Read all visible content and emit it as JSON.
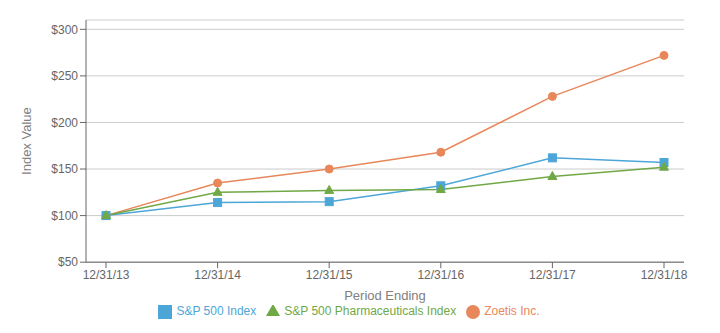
{
  "chart_data": {
    "type": "line",
    "xlabel": "Period Ending",
    "ylabel": "Index Value",
    "categories": [
      "12/31/13",
      "12/31/14",
      "12/31/15",
      "12/31/16",
      "12/31/17",
      "12/31/18"
    ],
    "series": [
      {
        "name": "Zoetis Inc.",
        "color": "#E8875A",
        "marker": "circle",
        "values": [
          100,
          135,
          150,
          168,
          228,
          272
        ]
      },
      {
        "name": "S&P 500 Index",
        "color": "#4DA6D8",
        "marker": "square",
        "values": [
          100,
          114,
          115,
          132,
          162,
          157
        ]
      },
      {
        "name": "S&P 500 Pharmaceuticals Index",
        "color": "#70A846",
        "marker": "triangle",
        "values": [
          100,
          125,
          127,
          128,
          142,
          152
        ]
      }
    ],
    "ylim": [
      50,
      310
    ],
    "yticks": [
      {
        "value": 50,
        "label": "$50"
      },
      {
        "value": 100,
        "label": "$100"
      },
      {
        "value": 150,
        "label": "$150"
      },
      {
        "value": 200,
        "label": "$200"
      },
      {
        "value": 250,
        "label": "$250"
      },
      {
        "value": 300,
        "label": "$300"
      }
    ],
    "grid": true,
    "legend": "bottom"
  }
}
